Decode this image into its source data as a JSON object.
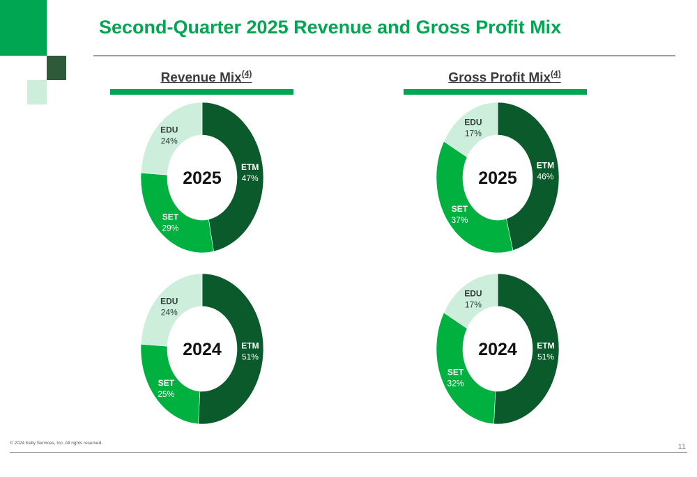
{
  "title": "Second-Quarter 2025 Revenue and Gross Profit Mix",
  "sections": {
    "revenue": {
      "label": "Revenue Mix",
      "note": "(4)"
    },
    "gross_profit": {
      "label": "Gross Profit Mix",
      "note": "(4)"
    }
  },
  "colors": {
    "ETM": "#0b5a2b",
    "SET": "#00b140",
    "EDU": "#cdeedb",
    "accent": "#00a651"
  },
  "chart_data": [
    {
      "type": "pie",
      "group": "Revenue Mix",
      "center_label": "2025",
      "slices": [
        {
          "label": "ETM",
          "value": 47,
          "display": "47%"
        },
        {
          "label": "SET",
          "value": 29,
          "display": "29%"
        },
        {
          "label": "EDU",
          "value": 24,
          "display": "24%"
        }
      ]
    },
    {
      "type": "pie",
      "group": "Gross Profit Mix",
      "center_label": "2025",
      "slices": [
        {
          "label": "ETM",
          "value": 46,
          "display": "46%"
        },
        {
          "label": "SET",
          "value": 37,
          "display": "37%"
        },
        {
          "label": "EDU",
          "value": 17,
          "display": "17%"
        }
      ]
    },
    {
      "type": "pie",
      "group": "Revenue Mix",
      "center_label": "2024",
      "slices": [
        {
          "label": "ETM",
          "value": 51,
          "display": "51%"
        },
        {
          "label": "SET",
          "value": 25,
          "display": "25%"
        },
        {
          "label": "EDU",
          "value": 24,
          "display": "24%"
        }
      ]
    },
    {
      "type": "pie",
      "group": "Gross Profit Mix",
      "center_label": "2024",
      "slices": [
        {
          "label": "ETM",
          "value": 51,
          "display": "51%"
        },
        {
          "label": "SET",
          "value": 32,
          "display": "32%"
        },
        {
          "label": "EDU",
          "value": 17,
          "display": "17%"
        }
      ]
    }
  ],
  "footer": {
    "copyright": "© 2024 Kelly Services, Inc. All rights reserved.",
    "page": "11"
  }
}
